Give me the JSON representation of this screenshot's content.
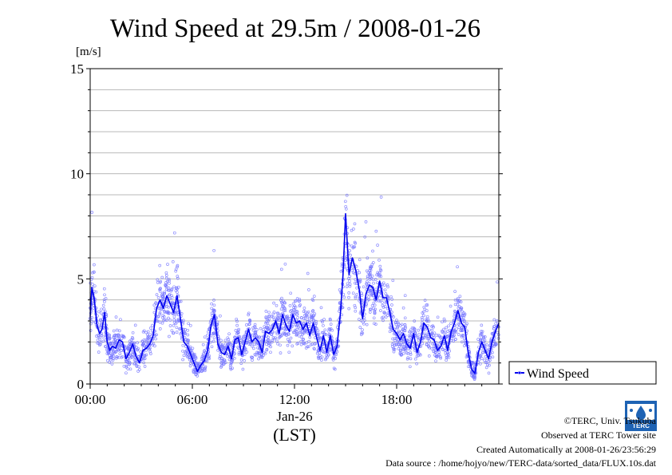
{
  "page": {
    "title": "Wind Speed at 29.5m / 2008-01-26",
    "unit_label": "[m/s]",
    "date_label": "Jan-26",
    "time_zone_label": "(LST)",
    "footer": {
      "copyright": "©TERC, Univ. Tsukuba",
      "observed": "Observed at TERC Tower site",
      "created": "Created Automatically at 2008-01-26/23:56:29",
      "source": "Data source : /home/hojyo/new/TERC-data/sorted_data/FLUX.10s.dat"
    },
    "logo_text": "TERC"
  },
  "chart_data": {
    "type": "line",
    "title": "Wind Speed at 29.5m / 2008-01-26",
    "ylabel": "[m/s]",
    "xlabel": "(LST)",
    "xlim": [
      0,
      24
    ],
    "ylim": [
      0,
      15
    ],
    "x_ticks": [
      {
        "value": 0,
        "label": "00:00"
      },
      {
        "value": 6,
        "label": "06:00"
      },
      {
        "value": 12,
        "label": "12:00"
      },
      {
        "value": 18,
        "label": "18:00"
      }
    ],
    "y_ticks": [
      {
        "value": 0,
        "label": "0"
      },
      {
        "value": 5,
        "label": "5"
      },
      {
        "value": 10,
        "label": "10"
      },
      {
        "value": 15,
        "label": "15"
      }
    ],
    "grid": true,
    "grid_step": 1,
    "legend": {
      "placement": "right",
      "label": "Wind Speed"
    },
    "colors": {
      "line": "#0000ee",
      "points": "#7777ff"
    },
    "series": [
      {
        "name": "Wind Speed",
        "x": [
          0,
          0.1,
          0.25,
          0.4,
          0.55,
          0.7,
          0.85,
          1.0,
          1.15,
          1.3,
          1.5,
          1.7,
          1.9,
          2.1,
          2.3,
          2.5,
          2.7,
          2.9,
          3.1,
          3.3,
          3.5,
          3.7,
          3.9,
          4.1,
          4.3,
          4.5,
          4.7,
          4.9,
          5.1,
          5.3,
          5.5,
          5.7,
          5.9,
          6.1,
          6.3,
          6.5,
          6.7,
          6.9,
          7.1,
          7.3,
          7.5,
          7.7,
          7.9,
          8.1,
          8.3,
          8.5,
          8.7,
          8.9,
          9.1,
          9.3,
          9.5,
          9.7,
          9.9,
          10.1,
          10.3,
          10.5,
          10.7,
          10.9,
          11.1,
          11.3,
          11.5,
          11.7,
          11.9,
          12.1,
          12.3,
          12.5,
          12.7,
          12.9,
          13.1,
          13.3,
          13.5,
          13.7,
          13.9,
          14.1,
          14.3,
          14.5,
          14.7,
          14.85,
          15.0,
          15.2,
          15.4,
          15.6,
          15.8,
          16.0,
          16.2,
          16.4,
          16.6,
          16.8,
          17.0,
          17.2,
          17.4,
          17.6,
          17.8,
          18.0,
          18.2,
          18.4,
          18.6,
          18.8,
          19.0,
          19.2,
          19.4,
          19.6,
          19.8,
          20.0,
          20.2,
          20.4,
          20.6,
          20.8,
          21.0,
          21.2,
          21.4,
          21.6,
          21.8,
          22.0,
          22.2,
          22.4,
          22.6,
          22.8,
          23.0,
          23.2,
          23.4,
          23.6,
          23.8,
          24.0
        ],
        "y": [
          3.2,
          4.6,
          4.0,
          2.8,
          2.4,
          2.6,
          3.4,
          2.0,
          1.6,
          1.8,
          1.7,
          2.1,
          2.0,
          1.2,
          1.5,
          1.9,
          1.3,
          1.0,
          1.6,
          1.7,
          1.9,
          2.3,
          3.6,
          4.0,
          3.6,
          4.2,
          3.8,
          3.4,
          4.2,
          3.1,
          2.0,
          1.8,
          1.4,
          1.0,
          0.6,
          0.9,
          1.1,
          1.6,
          2.8,
          3.3,
          1.9,
          1.5,
          1.4,
          1.8,
          1.2,
          2.1,
          2.2,
          1.4,
          2.0,
          2.6,
          2.0,
          2.2,
          2.0,
          1.5,
          2.5,
          2.4,
          2.6,
          3.0,
          2.4,
          3.3,
          2.8,
          2.5,
          3.3,
          2.9,
          3.0,
          2.6,
          2.9,
          2.3,
          2.9,
          2.2,
          1.6,
          2.3,
          1.5,
          2.3,
          1.4,
          1.8,
          3.4,
          5.2,
          8.1,
          5.2,
          6.0,
          5.4,
          4.5,
          3.1,
          4.3,
          4.7,
          4.6,
          4.0,
          4.9,
          4.1,
          4.1,
          3.4,
          2.6,
          2.4,
          2.1,
          2.4,
          1.9,
          1.7,
          2.4,
          1.5,
          2.0,
          2.9,
          2.7,
          2.2,
          2.1,
          1.6,
          1.8,
          2.3,
          1.6,
          2.5,
          2.9,
          3.5,
          2.9,
          2.7,
          1.5,
          0.7,
          0.5,
          1.5,
          2.0,
          1.6,
          1.2,
          2.0,
          2.5,
          2.9
        ]
      }
    ]
  }
}
